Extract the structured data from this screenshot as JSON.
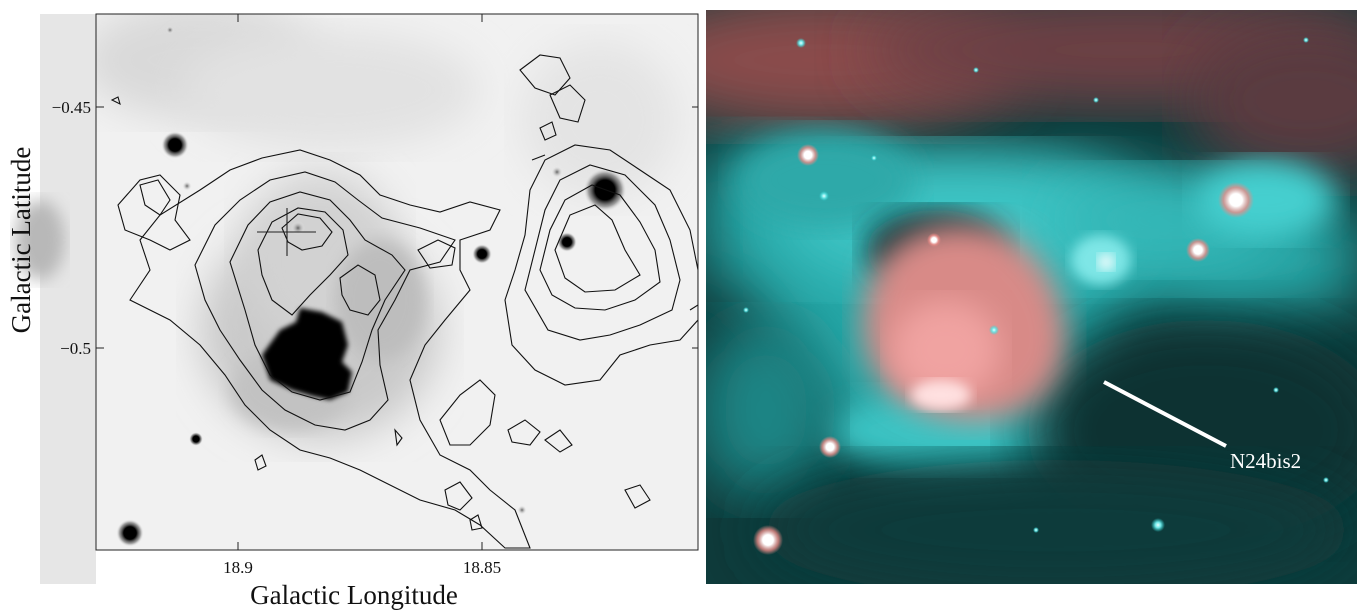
{
  "left_map": {
    "ylabel": "Galactic Latitude",
    "xlabel": "Galactic Longitude",
    "y_ticks": [
      {
        "value": -0.45,
        "label": "−0.45"
      },
      {
        "value": -0.5,
        "label": "−0.5"
      }
    ],
    "x_ticks": [
      {
        "value": 18.9,
        "label": "18.9"
      },
      {
        "value": 18.85,
        "label": "18.85"
      }
    ]
  },
  "right_image": {
    "annotation_label": "N24bis2",
    "colors": {
      "cyan": "#1fb9b9",
      "red": "#e8827f",
      "dark": "#0b3636"
    }
  }
}
